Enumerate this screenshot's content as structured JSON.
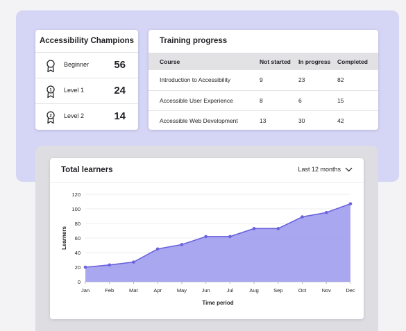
{
  "champions": {
    "title": "Accessibility Champions",
    "rows": [
      {
        "label": "Beginner",
        "count": "56",
        "icon": "award-medal-icon"
      },
      {
        "label": "Level 1",
        "count": "24",
        "icon": "award-medal-level-1-icon",
        "badge": "1"
      },
      {
        "label": "Level 2",
        "count": "14",
        "icon": "award-medal-level-2-icon",
        "badge": "2"
      }
    ]
  },
  "training": {
    "title": "Training progress",
    "headers": [
      "Course",
      "Not started",
      "In progress",
      "Completed"
    ],
    "rows": [
      [
        "Introduction to Accessibility",
        "9",
        "23",
        "82"
      ],
      [
        "Accessible User Experience",
        "8",
        "6",
        "15"
      ],
      [
        "Accessible Web Development",
        "13",
        "30",
        "42"
      ]
    ]
  },
  "learners": {
    "title": "Total learners",
    "period": "Last 12 months"
  },
  "colors": {
    "accent": "#6a62dc",
    "area_fill": "#a19df0",
    "card_lavender": "#d5d5f6"
  },
  "chart_data": {
    "type": "area",
    "categories": [
      "Jan",
      "Feb",
      "Mar",
      "Apr",
      "May",
      "Jun",
      "Jul",
      "Aug",
      "Sep",
      "Oct",
      "Nov",
      "Dec"
    ],
    "values": [
      20,
      23,
      27,
      45,
      51,
      62,
      62,
      73,
      73,
      89,
      95,
      107
    ],
    "xlabel": "Time period",
    "ylabel": "Learners",
    "ylim": [
      0,
      120
    ],
    "yticks": [
      0,
      20,
      40,
      60,
      80,
      100,
      120
    ],
    "grid": true,
    "legend": "none"
  }
}
